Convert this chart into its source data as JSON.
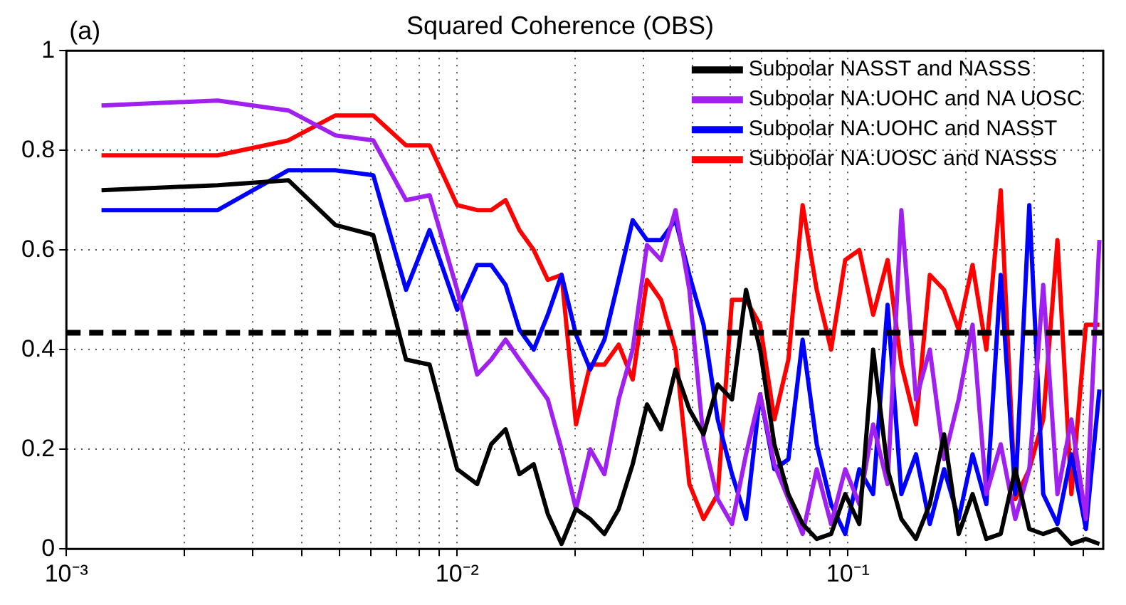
{
  "chart_data": {
    "type": "line",
    "title": "Squared Coherence (OBS)",
    "annotations": [
      "(a)"
    ],
    "x": [
      0.00123,
      0.00244,
      0.0037,
      0.00488,
      0.0061,
      0.0074,
      0.0085,
      0.01,
      0.01125,
      0.01222,
      0.0133,
      0.01443,
      0.0157,
      0.01706,
      0.0185,
      0.02014,
      0.0219,
      0.02381,
      0.0259,
      0.02813,
      0.0306,
      0.03324,
      0.0362,
      0.03928,
      0.0427,
      0.04642,
      0.0505,
      0.05485,
      0.0596,
      0.06481,
      0.0704,
      0.07656,
      0.0832,
      0.09054,
      0.0984,
      0.1069,
      0.116,
      0.1263,
      0.137,
      0.1493,
      0.162,
      0.1762,
      0.192,
      0.2084,
      0.226,
      0.246,
      0.268,
      0.2911,
      0.316,
      0.3436,
      0.373,
      0.4064,
      0.44
    ],
    "series": [
      {
        "name": "Subpolar NASST and NASSS",
        "color": "#000000",
        "values": [
          0.72,
          0.73,
          0.74,
          0.65,
          0.63,
          0.38,
          0.37,
          0.16,
          0.13,
          0.21,
          0.24,
          0.15,
          0.17,
          0.07,
          0.01,
          0.08,
          0.06,
          0.03,
          0.08,
          0.17,
          0.29,
          0.24,
          0.36,
          0.28,
          0.23,
          0.33,
          0.3,
          0.52,
          0.4,
          0.21,
          0.11,
          0.05,
          0.02,
          0.03,
          0.11,
          0.05,
          0.4,
          0.16,
          0.06,
          0.02,
          0.09,
          0.23,
          0.03,
          0.11,
          0.02,
          0.03,
          0.16,
          0.04,
          0.03,
          0.04,
          0.01,
          0.02,
          0.01
        ]
      },
      {
        "name": "Subpolar NA:UOHC and NA UOSC",
        "color": "#a020f0",
        "values": [
          0.89,
          0.9,
          0.88,
          0.83,
          0.82,
          0.7,
          0.71,
          0.52,
          0.35,
          0.38,
          0.42,
          0.38,
          0.34,
          0.3,
          0.2,
          0.08,
          0.2,
          0.15,
          0.3,
          0.4,
          0.61,
          0.58,
          0.68,
          0.52,
          0.22,
          0.1,
          0.05,
          0.19,
          0.31,
          0.17,
          0.1,
          0.03,
          0.16,
          0.05,
          0.16,
          0.09,
          0.25,
          0.13,
          0.68,
          0.3,
          0.4,
          0.18,
          0.3,
          0.45,
          0.11,
          0.21,
          0.06,
          0.16,
          0.53,
          0.11,
          0.26,
          0.06,
          0.62
        ]
      },
      {
        "name": "Subpolar NA:UOHC and NASST",
        "color": "#0000ff",
        "values": [
          0.68,
          0.68,
          0.76,
          0.76,
          0.75,
          0.52,
          0.64,
          0.48,
          0.57,
          0.57,
          0.53,
          0.44,
          0.4,
          0.47,
          0.55,
          0.43,
          0.36,
          0.42,
          0.54,
          0.66,
          0.62,
          0.62,
          0.66,
          0.55,
          0.45,
          0.26,
          0.15,
          0.06,
          0.31,
          0.16,
          0.18,
          0.42,
          0.21,
          0.09,
          0.03,
          0.16,
          0.11,
          0.49,
          0.11,
          0.19,
          0.05,
          0.16,
          0.06,
          0.19,
          0.09,
          0.55,
          0.11,
          0.69,
          0.11,
          0.05,
          0.19,
          0.04,
          0.32
        ]
      },
      {
        "name": "Subpolar NA:UOSC and NASSS",
        "color": "#ff0000",
        "values": [
          0.79,
          0.79,
          0.82,
          0.87,
          0.87,
          0.81,
          0.81,
          0.69,
          0.68,
          0.68,
          0.7,
          0.64,
          0.6,
          0.54,
          0.55,
          0.25,
          0.37,
          0.37,
          0.41,
          0.34,
          0.54,
          0.5,
          0.4,
          0.13,
          0.06,
          0.11,
          0.5,
          0.5,
          0.45,
          0.26,
          0.38,
          0.69,
          0.52,
          0.4,
          0.58,
          0.6,
          0.47,
          0.58,
          0.37,
          0.25,
          0.55,
          0.52,
          0.44,
          0.57,
          0.4,
          0.72,
          0.1,
          0.16,
          0.26,
          0.62,
          0.11,
          0.45,
          0.45
        ]
      }
    ],
    "log": "x",
    "xlim": [
      0.001,
      0.45
    ],
    "xticks": [
      {
        "value": 0.001,
        "label": "10⁻³"
      },
      {
        "value": 0.002,
        "label": null
      },
      {
        "value": 0.003,
        "label": null
      },
      {
        "value": 0.004,
        "label": null
      },
      {
        "value": 0.005,
        "label": null
      },
      {
        "value": 0.006,
        "label": null
      },
      {
        "value": 0.007,
        "label": null
      },
      {
        "value": 0.008,
        "label": null
      },
      {
        "value": 0.009,
        "label": null
      },
      {
        "value": 0.01,
        "label": "10⁻²"
      },
      {
        "value": 0.02,
        "label": null
      },
      {
        "value": 0.03,
        "label": null
      },
      {
        "value": 0.04,
        "label": null
      },
      {
        "value": 0.05,
        "label": null
      },
      {
        "value": 0.06,
        "label": null
      },
      {
        "value": 0.07,
        "label": null
      },
      {
        "value": 0.08,
        "label": null
      },
      {
        "value": 0.09,
        "label": null
      },
      {
        "value": 0.1,
        "label": "10⁻¹"
      },
      {
        "value": 0.2,
        "label": null
      },
      {
        "value": 0.3,
        "label": null
      },
      {
        "value": 0.4,
        "label": null
      }
    ],
    "ylim": [
      0,
      1
    ],
    "yticks": [
      0,
      0.2,
      0.4,
      0.6,
      0.8,
      1
    ],
    "grid": true,
    "legend": "top right",
    "marker": "none",
    "line_style": "solid",
    "ref_lines": [
      {
        "axis": "y",
        "value": 0.434,
        "color": "#000000",
        "line_style": "dashed"
      }
    ]
  }
}
